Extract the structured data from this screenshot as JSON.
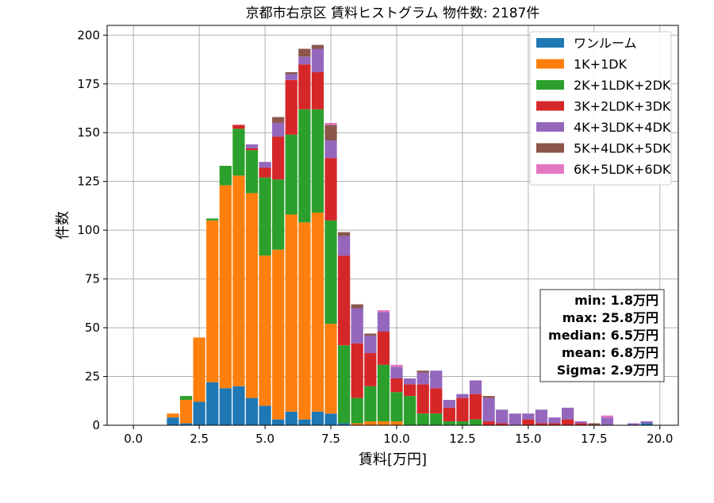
{
  "chart_data": {
    "type": "bar",
    "stacked": true,
    "title": "京都市右京区 賃料ヒストグラム 物件数: 2187件",
    "xlabel": "賃料[万円]",
    "ylabel": "件数",
    "xlim": [
      -1,
      20.7
    ],
    "ylim": [
      0,
      205
    ],
    "xticks": [
      "0.0",
      "2.5",
      "5.0",
      "7.5",
      "10.0",
      "12.5",
      "15.0",
      "17.5",
      "20.0"
    ],
    "yticks": [
      "0",
      "25",
      "50",
      "75",
      "100",
      "125",
      "150",
      "175",
      "200"
    ],
    "grid": true,
    "legend_position": "top-right",
    "bin_width": 0.5,
    "x": [
      1.5,
      2.0,
      2.5,
      3.0,
      3.5,
      4.0,
      4.5,
      5.0,
      5.5,
      6.0,
      6.5,
      7.0,
      7.5,
      8.0,
      8.5,
      9.0,
      9.5,
      10.0,
      10.5,
      11.0,
      11.5,
      12.0,
      12.5,
      13.0,
      13.5,
      14.0,
      14.5,
      15.0,
      15.5,
      16.0,
      16.5,
      17.0,
      17.5,
      18.0,
      18.5,
      19.0,
      19.5
    ],
    "series": [
      {
        "name": "ワンルーム",
        "color": "#1f77b4",
        "values": [
          4,
          1,
          12,
          22,
          19,
          20,
          14,
          10,
          3,
          7,
          3,
          7,
          6,
          1,
          0,
          0,
          0,
          0,
          0,
          0,
          0,
          0,
          0,
          0,
          0,
          0,
          0,
          0,
          0,
          0,
          0,
          0,
          0,
          0,
          0,
          0,
          1
        ]
      },
      {
        "name": "1K+1DK",
        "color": "#ff7f0e",
        "values": [
          2,
          12,
          33,
          83,
          104,
          108,
          105,
          77,
          87,
          101,
          101,
          102,
          46,
          0,
          1,
          2,
          2,
          2,
          0,
          0,
          0,
          0,
          0,
          0,
          0,
          0,
          0,
          0,
          0,
          0,
          0,
          0,
          0,
          0,
          0,
          0,
          0
        ]
      },
      {
        "name": "2K+1LDK+2DK",
        "color": "#2ca02c",
        "values": [
          0,
          2,
          0,
          1,
          10,
          24,
          22,
          40,
          36,
          41,
          58,
          53,
          53,
          40,
          13,
          18,
          29,
          15,
          15,
          6,
          6,
          2,
          2,
          3,
          0,
          0,
          0,
          0,
          0,
          0,
          0,
          0,
          0,
          0,
          0,
          0,
          0
        ]
      },
      {
        "name": "3K+2LDK+3DK",
        "color": "#d62728",
        "values": [
          0,
          0,
          0,
          0,
          0,
          2,
          1,
          5,
          22,
          28,
          23,
          19,
          32,
          46,
          28,
          17,
          17,
          7,
          6,
          15,
          13,
          7,
          12,
          13,
          2,
          1,
          0,
          3,
          1,
          1,
          3,
          1,
          0,
          0,
          0,
          0,
          0
        ]
      },
      {
        "name": "4K+3LDK+4DK",
        "color": "#9467bd",
        "values": [
          0,
          0,
          0,
          0,
          0,
          0,
          2,
          3,
          7,
          3,
          4,
          12,
          9,
          10,
          18,
          9,
          10,
          6,
          3,
          6,
          9,
          4,
          2,
          7,
          12,
          7,
          6,
          3,
          7,
          3,
          6,
          1,
          0,
          4,
          0,
          1,
          1
        ]
      },
      {
        "name": "5K+4LDK+5DK",
        "color": "#8c564b",
        "values": [
          0,
          0,
          0,
          0,
          0,
          0,
          0,
          0,
          3,
          1,
          4,
          2,
          8,
          2,
          2,
          1,
          0,
          0,
          0,
          1,
          0,
          0,
          0,
          0,
          1,
          0,
          0,
          0,
          0,
          0,
          0,
          0,
          1,
          0,
          0,
          0,
          0
        ]
      },
      {
        "name": "6K+5LDK+6DK",
        "color": "#e377c2",
        "values": [
          0,
          0,
          0,
          0,
          0,
          0,
          0,
          0,
          0,
          0,
          0,
          0,
          1,
          0,
          0,
          0,
          1,
          1,
          0,
          0,
          0,
          0,
          0,
          0,
          0,
          0,
          0,
          0,
          0,
          0,
          0,
          0,
          0,
          1,
          0,
          0,
          0
        ]
      }
    ],
    "stats": {
      "min": "min: 1.8万円",
      "max": "max: 25.8万円",
      "median": "median: 6.5万円",
      "mean": "mean: 6.8万円",
      "sigma": "Sigma: 2.9万円"
    }
  }
}
